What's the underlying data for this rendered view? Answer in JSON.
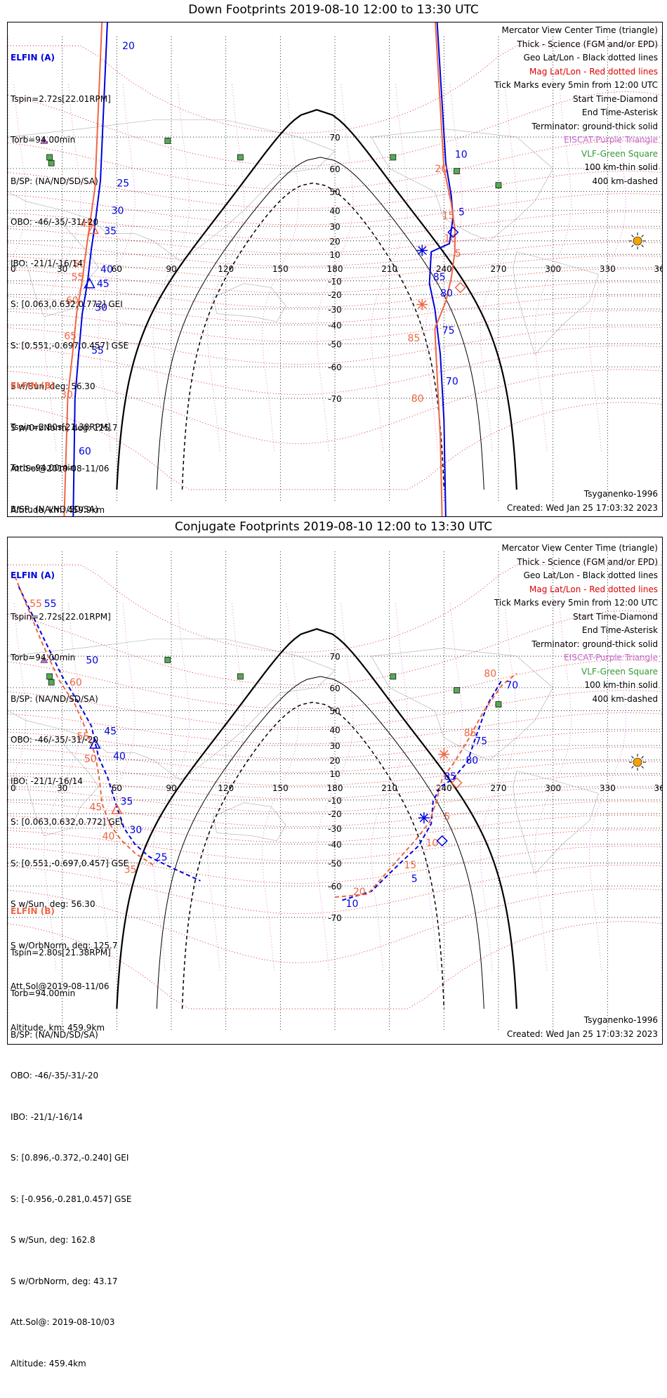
{
  "colors": {
    "a": "#0000dd",
    "b": "#ee6644",
    "mag": "#dd0000",
    "geo": "#000000",
    "trig": "#cc66cc",
    "vlf": "#339933",
    "land": "#888888"
  },
  "lon_labels": [
    "0",
    "30",
    "60",
    "90",
    "120",
    "150",
    "180",
    "210",
    "240",
    "270",
    "300",
    "330",
    "360"
  ],
  "lat_labels": [
    "70",
    "60",
    "50",
    "40",
    "30",
    "20",
    "10",
    "-10",
    "-20",
    "-30",
    "-40",
    "-50",
    "-60",
    "-70"
  ],
  "legend": [
    {
      "text": "Mercator View Center Time (triangle)",
      "color": "#000000"
    },
    {
      "text": "Thick - Science (FGM and/or EPD)",
      "color": "#000000"
    },
    {
      "text": "Geo Lat/Lon - Black dotted lines",
      "color": "#000000"
    },
    {
      "text": "Mag Lat/Lon - Red dotted lines",
      "color": "#dd0000"
    },
    {
      "text": "Tick Marks every 5min from 12:00 UTC",
      "color": "#000000"
    },
    {
      "text": "Start Time-Diamond",
      "color": "#000000"
    },
    {
      "text": "End Time-Asterisk",
      "color": "#000000"
    },
    {
      "text": "Terminator: ground-thick solid",
      "color": "#000000"
    },
    {
      "text": "EISCAT-Purple Triangle",
      "color": "#cc66cc"
    },
    {
      "text": "VLF-Green Square",
      "color": "#339933"
    },
    {
      "text": "100 km-thin solid",
      "color": "#000000"
    },
    {
      "text": "400 km-dashed",
      "color": "#000000"
    }
  ],
  "sc_a": {
    "title": "ELFIN (A)",
    "lines": [
      "Tspin=2.72s[22.01RPM]",
      "Torb=94.00min",
      "B/SP: (NA/ND/SD/SA)",
      "OBO: -46/-35/-31/-20",
      "IBO: -21/1/-16/14",
      "S: [0.063,0.632,0.772] GEI",
      "S: [0.551,-0.697,0.457] GSE",
      "S w/Sun, deg: 56.30",
      "S w/OrbNorm, deg: 125.7",
      "Att.Sol@2019-08-11/06",
      "Altitude, km: 459.9km"
    ]
  },
  "sc_b": {
    "title": "ELFIN (B)",
    "lines": [
      "Tspin=2.80s[21.38RPM]",
      "Torb=94.00min",
      "B/SP: (NA/ND/SD/SA)",
      "OBO: -46/-35/-31/-20",
      "IBO: -21/1/-16/14",
      "S: [0.896,-0.372,-0.240] GEI",
      "S: [-0.956,-0.281,0.457] GSE",
      "S w/Sun, deg: 162.8",
      "S w/OrbNorm, deg: 43.17",
      "Att.Sol@: 2019-08-10/03",
      "Altitude: 459.4km"
    ]
  },
  "model": "Tsyganenko-1996",
  "created": "Created: Wed Jan 25 17:03:32 2023",
  "panels": [
    {
      "title": "Down Footprints 2019-08-10 12:00 to 13:30 UTC",
      "tracks": [
        {
          "sc": "a",
          "dash": false,
          "pts": [
            [
              55,
              86
            ],
            [
              51,
              55
            ],
            [
              48,
              31
            ],
            [
              46,
              14
            ],
            [
              44,
              -10
            ],
            [
              41,
              -33
            ],
            [
              39,
              -55
            ],
            [
              37,
              -70
            ],
            [
              36,
              -86
            ]
          ]
        },
        {
          "sc": "b",
          "dash": false,
          "pts": [
            [
              52,
              86
            ],
            [
              48,
              52
            ],
            [
              45,
              30
            ],
            [
              43,
              12
            ],
            [
              41,
              -10
            ],
            [
              38,
              -32
            ],
            [
              36,
              -52
            ],
            [
              33,
              -70
            ],
            [
              31,
              -86
            ]
          ]
        },
        {
          "sc": "a",
          "dash": false,
          "pts": [
            [
              236,
              86
            ],
            [
              241,
              62
            ],
            [
              244,
              48
            ],
            [
              245,
              36
            ],
            [
              243,
              18
            ],
            [
              233,
              12
            ],
            [
              232,
              -12
            ],
            [
              235,
              -30
            ],
            [
              238,
              -55
            ],
            [
              240,
              -75
            ],
            [
              241,
              -86
            ]
          ]
        },
        {
          "sc": "b",
          "dash": false,
          "pts": [
            [
              235,
              86
            ],
            [
              240,
              60
            ],
            [
              244,
              44
            ],
            [
              246,
              28
            ],
            [
              246,
              12
            ],
            [
              244,
              -8
            ],
            [
              241,
              -25
            ],
            [
              235,
              -42
            ],
            [
              236,
              -60
            ],
            [
              238,
              -78
            ],
            [
              239,
              -86
            ]
          ]
        }
      ],
      "labels": [
        {
          "sc": "a",
          "t": "20",
          "lon": 63,
          "lat": 84
        },
        {
          "sc": "a",
          "t": "25",
          "lon": 60,
          "lat": 54
        },
        {
          "sc": "a",
          "t": "30",
          "lon": 57,
          "lat": 40
        },
        {
          "sc": "a",
          "t": "35",
          "lon": 53,
          "lat": 27
        },
        {
          "sc": "a",
          "t": "40",
          "lon": 51,
          "lat": -1
        },
        {
          "sc": "a",
          "t": "45",
          "lon": 49,
          "lat": -12
        },
        {
          "sc": "a",
          "t": "50",
          "lon": 48,
          "lat": -29
        },
        {
          "sc": "a",
          "t": "55",
          "lon": 46,
          "lat": -53
        },
        {
          "sc": "a",
          "t": "60",
          "lon": 39,
          "lat": -80
        },
        {
          "sc": "b",
          "t": "45",
          "lon": 40,
          "lat": 32
        },
        {
          "sc": "b",
          "t": "50",
          "lon": 36,
          "lat": 3
        },
        {
          "sc": "b",
          "t": "55",
          "lon": 35,
          "lat": -7
        },
        {
          "sc": "b",
          "t": "60",
          "lon": 32,
          "lat": -24
        },
        {
          "sc": "b",
          "t": "65",
          "lon": 31,
          "lat": -46
        },
        {
          "sc": "b",
          "t": "30",
          "lon": 29,
          "lat": -69
        },
        {
          "sc": "a",
          "t": "10",
          "lon": 246,
          "lat": 65
        },
        {
          "sc": "a",
          "t": "5",
          "lon": 248,
          "lat": 39
        },
        {
          "sc": "a",
          "t": "85",
          "lon": 234,
          "lat": -7
        },
        {
          "sc": "a",
          "t": "80",
          "lon": 238,
          "lat": -19
        },
        {
          "sc": "a",
          "t": "75",
          "lon": 239,
          "lat": -43
        },
        {
          "sc": "a",
          "t": "70",
          "lon": 241,
          "lat": -65
        },
        {
          "sc": "b",
          "t": "20",
          "lon": 235,
          "lat": 60
        },
        {
          "sc": "b",
          "t": "15",
          "lon": 239,
          "lat": 37
        },
        {
          "sc": "b",
          "t": "10",
          "lon": 240,
          "lat": 22
        },
        {
          "sc": "b",
          "t": "5",
          "lon": 246,
          "lat": 11
        },
        {
          "sc": "b",
          "t": "85",
          "lon": 220,
          "lat": -47
        },
        {
          "sc": "b",
          "t": "80",
          "lon": 222,
          "lat": -70
        }
      ],
      "markers": [
        {
          "sc": "a",
          "k": "diamond",
          "lon": 245,
          "lat": 26
        },
        {
          "sc": "b",
          "k": "diamond",
          "lon": 249,
          "lat": -15
        },
        {
          "sc": "a",
          "k": "star",
          "lon": 228,
          "lat": 13
        },
        {
          "sc": "b",
          "k": "star",
          "lon": 228,
          "lat": -27
        },
        {
          "sc": "b",
          "k": "tri",
          "lon": 47,
          "lat": 28
        },
        {
          "sc": "a",
          "k": "tri",
          "lon": 45,
          "lat": -12
        }
      ]
    },
    {
      "title": "Conjugate Footprints 2019-08-10 12:00 to 13:30 UTC",
      "tracks": [
        {
          "sc": "a",
          "dash": true,
          "pts": [
            [
              6,
              82
            ],
            [
              20,
              74
            ],
            [
              30,
              64
            ],
            [
              38,
              55
            ],
            [
              46,
              42
            ],
            [
              50,
              22
            ],
            [
              55,
              7
            ],
            [
              60,
              -15
            ],
            [
              64,
              -30
            ],
            [
              70,
              -40
            ],
            [
              78,
              -47
            ],
            [
              92,
              -53
            ],
            [
              106,
              -58
            ]
          ]
        },
        {
          "sc": "b",
          "dash": true,
          "pts": [
            [
              4,
              83
            ],
            [
              18,
              74
            ],
            [
              28,
              63
            ],
            [
              37,
              53
            ],
            [
              43,
              40
            ],
            [
              48,
              24
            ],
            [
              50,
              10
            ],
            [
              52,
              -13
            ],
            [
              56,
              -27
            ],
            [
              62,
              -37
            ],
            [
              70,
              -45
            ],
            [
              80,
              -51
            ]
          ]
        },
        {
          "sc": "a",
          "dash": true,
          "pts": [
            [
              184,
              -65
            ],
            [
              200,
              -62
            ],
            [
              216,
              -50
            ],
            [
              226,
              -41
            ],
            [
              233,
              -27
            ],
            [
              234,
              -11
            ],
            [
              238,
              0
            ],
            [
              245,
              6
            ],
            [
              253,
              19
            ],
            [
              258,
              37
            ],
            [
              264,
              53
            ],
            [
              272,
              63
            ]
          ]
        },
        {
          "sc": "b",
          "dash": true,
          "pts": [
            [
              180,
              -64
            ],
            [
              198,
              -63
            ],
            [
              216,
              -47
            ],
            [
              224,
              -38
            ],
            [
              232,
              -26
            ],
            [
              236,
              -10
            ],
            [
              239,
              6
            ],
            [
              246,
              19
            ],
            [
              254,
              35
            ],
            [
              262,
              50
            ],
            [
              272,
              61
            ],
            [
              280,
              65
            ]
          ]
        }
      ],
      "labels": [
        {
          "sc": "a",
          "t": "55",
          "lon": 20,
          "lat": 80
        },
        {
          "sc": "a",
          "t": "50",
          "lon": 43,
          "lat": 69
        },
        {
          "sc": "a",
          "t": "45",
          "lon": 53,
          "lat": 39
        },
        {
          "sc": "a",
          "t": "40",
          "lon": 58,
          "lat": 23
        },
        {
          "sc": "a",
          "t": "35",
          "lon": 62,
          "lat": -11
        },
        {
          "sc": "a",
          "t": "30",
          "lon": 67,
          "lat": -31
        },
        {
          "sc": "a",
          "t": "25",
          "lon": 81,
          "lat": -47
        },
        {
          "sc": "b",
          "t": "55",
          "lon": 12,
          "lat": 80
        },
        {
          "sc": "b",
          "t": "60",
          "lon": 34,
          "lat": 62
        },
        {
          "sc": "b",
          "t": "55",
          "lon": 38,
          "lat": 36
        },
        {
          "sc": "b",
          "t": "50",
          "lon": 42,
          "lat": 21
        },
        {
          "sc": "b",
          "t": "45",
          "lon": 45,
          "lat": -15
        },
        {
          "sc": "b",
          "t": "40",
          "lon": 52,
          "lat": -35
        },
        {
          "sc": "b",
          "t": "35",
          "lon": 64,
          "lat": -53
        },
        {
          "sc": "b",
          "t": "80",
          "lon": 262,
          "lat": 65
        },
        {
          "sc": "a",
          "t": "70",
          "lon": 274,
          "lat": 61
        },
        {
          "sc": "b",
          "t": "85",
          "lon": 251,
          "lat": 38
        },
        {
          "sc": "a",
          "t": "75",
          "lon": 257,
          "lat": 33
        },
        {
          "sc": "a",
          "t": "80",
          "lon": 252,
          "lat": 20
        },
        {
          "sc": "a",
          "t": "85",
          "lon": 240,
          "lat": 8
        },
        {
          "sc": "b",
          "t": "5",
          "lon": 240,
          "lat": -22
        },
        {
          "sc": "b",
          "t": "10",
          "lon": 230,
          "lat": -39
        },
        {
          "sc": "b",
          "t": "15",
          "lon": 218,
          "lat": -51
        },
        {
          "sc": "a",
          "t": "5",
          "lon": 222,
          "lat": -57
        },
        {
          "sc": "b",
          "t": "20",
          "lon": 190,
          "lat": -62
        },
        {
          "sc": "a",
          "t": "10",
          "lon": 186,
          "lat": -66
        }
      ],
      "markers": [
        {
          "sc": "b",
          "k": "diamond",
          "lon": 247,
          "lat": 3
        },
        {
          "sc": "a",
          "k": "diamond",
          "lon": 239,
          "lat": -38
        },
        {
          "sc": "b",
          "k": "star",
          "lon": 240,
          "lat": 24
        },
        {
          "sc": "a",
          "k": "star",
          "lon": 229,
          "lat": -23
        },
        {
          "sc": "a",
          "k": "tri",
          "lon": 48,
          "lat": 31
        },
        {
          "sc": "b",
          "k": "tri",
          "lon": 60,
          "lat": -17
        }
      ]
    }
  ],
  "eiscat": [
    {
      "lon": 20,
      "lat": 69
    }
  ],
  "vlf": [
    {
      "lon": 88,
      "lat": 69
    },
    {
      "lon": 23,
      "lat": 64
    },
    {
      "lon": 128,
      "lat": 64
    },
    {
      "lon": 212,
      "lat": 64
    },
    {
      "lon": 247,
      "lat": 59
    },
    {
      "lon": 270,
      "lat": 53
    },
    {
      "lon": 24,
      "lat": 62
    }
  ]
}
